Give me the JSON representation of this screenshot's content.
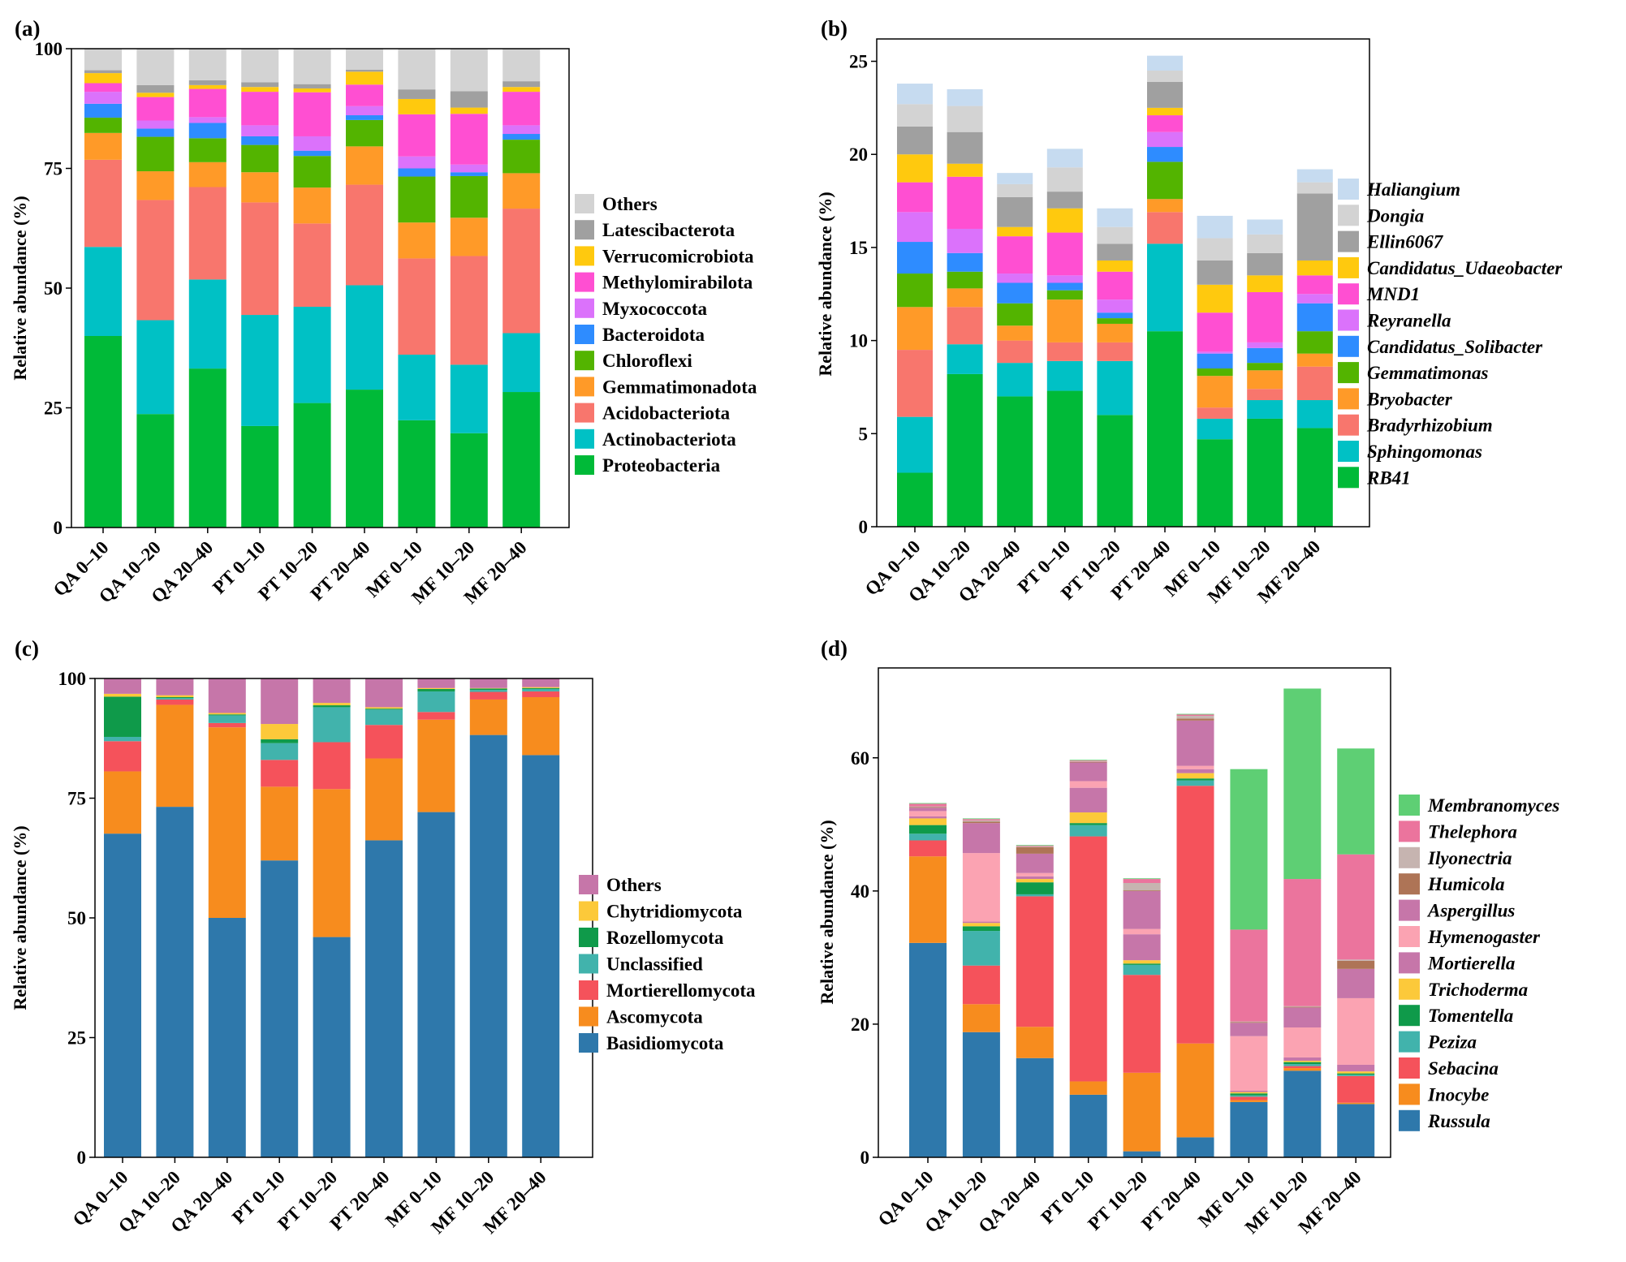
{
  "figure": {
    "categories": [
      "QA 0–10",
      "QA 10–20",
      "QA 20–40",
      "PT 0–10",
      "PT 10–20",
      "PT 20–40",
      "MF 0–10",
      "MF 10–20",
      "MF 20–40"
    ]
  },
  "chart_data": [
    {
      "id": "a",
      "panel_label": "(a)",
      "type": "bar",
      "stacked": true,
      "ylabel": "Relative abundance (%)",
      "ylim": [
        0,
        100
      ],
      "yticks": [
        0,
        25,
        50,
        75,
        100
      ],
      "legend_italic": false,
      "categories": [
        "QA 0–10",
        "QA 10–20",
        "QA 20–40",
        "PT 0–10",
        "PT 10–20",
        "PT 20–40",
        "MF 0–10",
        "MF 10–20",
        "MF 20–40"
      ],
      "series": [
        {
          "name": "Proteobacteria",
          "color": "#00BA38",
          "values": [
            40,
            23.7,
            33.2,
            21.2,
            26,
            28.8,
            22.4,
            19.7,
            28.3
          ]
        },
        {
          "name": "Actinobacteriota",
          "color": "#00C1C5",
          "values": [
            18.6,
            19.6,
            18.6,
            23.2,
            20.1,
            21.8,
            13.7,
            14.3,
            12.3
          ]
        },
        {
          "name": "Acidobacteriota",
          "color": "#F8766D",
          "values": [
            18.2,
            25.1,
            19.3,
            23.5,
            17.4,
            21,
            20.1,
            22.7,
            26
          ]
        },
        {
          "name": "Gemmatimonadota",
          "color": "#FF9A28",
          "values": [
            5.6,
            6,
            5.2,
            6.3,
            7.5,
            8,
            7.5,
            8,
            7.4
          ]
        },
        {
          "name": "Chloroflexi",
          "color": "#53B400",
          "values": [
            3.2,
            7.2,
            5,
            5.7,
            6.6,
            5.5,
            9.6,
            8.7,
            7
          ]
        },
        {
          "name": "Bacteroidota",
          "color": "#2E8CFF",
          "values": [
            2.9,
            1.7,
            3.2,
            1.8,
            1.1,
            1,
            1.7,
            0.8,
            1.2
          ]
        },
        {
          "name": "Myxococcota",
          "color": "#DB72FB",
          "values": [
            2.5,
            1.7,
            1.2,
            2.3,
            3,
            1.9,
            2.5,
            1.6,
            1.8
          ]
        },
        {
          "name": "Methylomirabilota",
          "color": "#FF4FD2",
          "values": [
            1.8,
            4.9,
            5.9,
            7,
            9.2,
            4.5,
            8.8,
            10.6,
            7
          ]
        },
        {
          "name": "Verrucomicrobiota",
          "color": "#FFC90E",
          "values": [
            2.1,
            0.9,
            0.8,
            1,
            0.8,
            2.7,
            3.2,
            1.3,
            1
          ]
        },
        {
          "name": "Latescibacterota",
          "color": "#A0A0A0",
          "values": [
            0.6,
            1.6,
            1,
            1,
            0.9,
            0.4,
            2,
            3.4,
            1.2
          ]
        },
        {
          "name": "Others",
          "color": "#D3D3D3",
          "values": [
            4.5,
            7.6,
            6.6,
            6.9,
            7.4,
            4.5,
            8.5,
            8.9,
            6.8
          ]
        }
      ]
    },
    {
      "id": "b",
      "panel_label": "(b)",
      "type": "bar",
      "stacked": true,
      "ylabel": "Relative abundance (%)",
      "ylim": [
        0,
        26.2
      ],
      "yticks": [
        0,
        5,
        10,
        15,
        20,
        25
      ],
      "legend_italic": true,
      "categories": [
        "QA 0–10",
        "QA 10–20",
        "QA 20–40",
        "PT 0–10",
        "PT 10–20",
        "PT 20–40",
        "MF 0–10",
        "MF 10–20",
        "MF 20–40"
      ],
      "series": [
        {
          "name": "RB41",
          "color": "#00BA38",
          "values": [
            2.9,
            8.2,
            7,
            7.3,
            6,
            10.5,
            4.7,
            5.8,
            5.3
          ]
        },
        {
          "name": "Sphingomonas",
          "color": "#00C1C5",
          "values": [
            3,
            1.6,
            1.8,
            1.6,
            2.9,
            4.7,
            1.1,
            1,
            1.5
          ]
        },
        {
          "name": "Bradyrhizobium",
          "color": "#F8766D",
          "values": [
            3.6,
            2,
            1.2,
            1,
            1,
            1.7,
            0.6,
            0.6,
            1.8
          ]
        },
        {
          "name": "Bryobacter",
          "color": "#FF9A28",
          "values": [
            2.3,
            1,
            0.8,
            2.3,
            1,
            0.7,
            1.7,
            1,
            0.7
          ]
        },
        {
          "name": "Gemmatimonas",
          "color": "#53B400",
          "values": [
            1.8,
            0.9,
            1.2,
            0.5,
            0.3,
            2,
            0.4,
            0.4,
            1.2
          ]
        },
        {
          "name": "Candidatus_Solibacter",
          "color": "#2E8CFF",
          "values": [
            1.7,
            1,
            1.1,
            0.4,
            0.3,
            0.8,
            0.8,
            0.8,
            1.5
          ]
        },
        {
          "name": "Reyranella",
          "color": "#DB72FB",
          "values": [
            1.6,
            1.3,
            0.5,
            0.4,
            0.7,
            0.8,
            0.1,
            0.3,
            0.5
          ]
        },
        {
          "name": "MND1",
          "color": "#FF4FD2",
          "values": [
            1.6,
            2.8,
            2,
            2.3,
            1.5,
            0.9,
            2.1,
            2.7,
            1
          ]
        },
        {
          "name": "Candidatus_Udaeobacter",
          "color": "#FFC90E",
          "values": [
            1.5,
            0.7,
            0.5,
            1.3,
            0.6,
            0.4,
            1.5,
            0.9,
            0.8
          ]
        },
        {
          "name": "Ellin6067",
          "color": "#A0A0A0",
          "values": [
            1.5,
            1.7,
            1.6,
            0.9,
            0.9,
            1.4,
            1.3,
            1.2,
            3.6
          ]
        },
        {
          "name": "Dongia",
          "color": "#D3D3D3",
          "values": [
            1.2,
            1.4,
            0.7,
            1.3,
            0.9,
            0.6,
            1.2,
            1,
            0.6
          ]
        },
        {
          "name": "Haliangium",
          "color": "#C6DBF0",
          "values": [
            1.1,
            0.9,
            0.6,
            1,
            1,
            0.8,
            1.2,
            0.8,
            0.7
          ]
        }
      ]
    },
    {
      "id": "c",
      "panel_label": "(c)",
      "type": "bar",
      "stacked": true,
      "ylabel": "Relative abundance (%)",
      "ylim": [
        0,
        100
      ],
      "yticks": [
        0,
        25,
        50,
        75,
        100
      ],
      "legend_italic": false,
      "categories": [
        "QA 0–10",
        "QA 10–20",
        "QA 20–40",
        "PT 0–10",
        "PT 10–20",
        "PT 20–40",
        "MF 0–10",
        "MF 10–20",
        "MF 20–40"
      ],
      "series": [
        {
          "name": "Basidiomycota",
          "color": "#2E78AB",
          "values": [
            67.6,
            73.2,
            50,
            62,
            46,
            66.2,
            72.1,
            88.2,
            84
          ]
        },
        {
          "name": "Ascomycota",
          "color": "#F78C1E",
          "values": [
            13,
            21.3,
            39.8,
            15.4,
            30.9,
            17.1,
            19.3,
            7.4,
            12.1
          ]
        },
        {
          "name": "Mortierellomycota",
          "color": "#F5525B",
          "values": [
            6.3,
            1.1,
            0.9,
            5.6,
            9.8,
            7,
            1.6,
            1.6,
            1.2
          ]
        },
        {
          "name": "Unclassified",
          "color": "#41B3AC",
          "values": [
            0.9,
            0.3,
            1.6,
            3.5,
            7.3,
            3.2,
            4.3,
            0.4,
            0.5
          ]
        },
        {
          "name": "Rozellomycota",
          "color": "#0F9A4A",
          "values": [
            8.4,
            0.2,
            0.2,
            0.8,
            0.4,
            0.2,
            0.5,
            0.3,
            0.2
          ]
        },
        {
          "name": "Chytridiomycota",
          "color": "#FCC93A",
          "values": [
            0.6,
            0.4,
            0.3,
            3.2,
            0.5,
            0.3,
            0.2,
            0.1,
            0.2
          ]
        },
        {
          "name": "Others",
          "color": "#C676A9",
          "values": [
            3.2,
            3.5,
            7.2,
            9.5,
            5.1,
            6,
            2,
            2,
            1.8
          ]
        }
      ]
    },
    {
      "id": "d",
      "panel_label": "(d)",
      "type": "bar",
      "stacked": true,
      "ylabel": "Relative abundance (%)",
      "ylim": [
        0,
        73.5
      ],
      "yticks": [
        0,
        20,
        40,
        60
      ],
      "legend_italic": true,
      "categories": [
        "QA 0–10",
        "QA 10–20",
        "QA 20–40",
        "PT 0–10",
        "PT 10–20",
        "PT 20–40",
        "MF 0–10",
        "MF 10–20",
        "MF 20–40"
      ],
      "series": [
        {
          "name": "Russula",
          "color": "#2E78AB",
          "values": [
            32.2,
            18.8,
            14.9,
            9.4,
            0.9,
            3,
            8.3,
            13,
            8
          ]
        },
        {
          "name": "Inocybe",
          "color": "#F78C1E",
          "values": [
            13,
            4.2,
            4.7,
            2,
            11.8,
            14.1,
            0.3,
            0.4,
            0.2
          ]
        },
        {
          "name": "Sebacina",
          "color": "#F5525B",
          "values": [
            2.4,
            5.8,
            19.6,
            36.8,
            14.7,
            38.7,
            0.5,
            0.3,
            4
          ]
        },
        {
          "name": "Peziza",
          "color": "#41B3AC",
          "values": [
            1,
            5.2,
            0.3,
            1.7,
            1.5,
            0.8,
            0.2,
            0.3,
            0.2
          ]
        },
        {
          "name": "Tomentella",
          "color": "#0F9A4A",
          "values": [
            1.3,
            0.7,
            1.8,
            0.3,
            0.2,
            0.3,
            0.3,
            0.3,
            0.2
          ]
        },
        {
          "name": "Trichoderma",
          "color": "#FCC93A",
          "values": [
            1,
            0.5,
            0.5,
            1.6,
            0.5,
            0.8,
            0.2,
            0.2,
            0.3
          ]
        },
        {
          "name": "Mortierella",
          "color": "#C676A9",
          "values": [
            0.3,
            0.2,
            0.4,
            3.7,
            3.9,
            0.6,
            0.2,
            0.5,
            1
          ]
        },
        {
          "name": "Hymenogaster",
          "color": "#FBA3B2",
          "values": [
            0.8,
            10.3,
            0.5,
            1,
            0.8,
            0.5,
            8.2,
            4.5,
            10
          ]
        },
        {
          "name": "Aspergillus",
          "color": "#C676A9",
          "values": [
            0.5,
            4.5,
            2.9,
            2.8,
            5.7,
            6.8,
            2,
            3,
            4.4
          ]
        },
        {
          "name": "Humicola",
          "color": "#AE7456",
          "values": [
            0.1,
            0.2,
            1,
            0.1,
            0.1,
            0.3,
            0.1,
            0.1,
            1.2
          ]
        },
        {
          "name": "Ilyonectria",
          "color": "#C6B4B0",
          "values": [
            0.1,
            0.2,
            0.1,
            0.1,
            1.1,
            0.4,
            0.1,
            0.1,
            0.2
          ]
        },
        {
          "name": "Thelephora",
          "color": "#EB749D",
          "values": [
            0.4,
            0.2,
            0.1,
            0.1,
            0.6,
            0.2,
            13.8,
            19.1,
            15.8
          ]
        },
        {
          "name": "Membranomyces",
          "color": "#5ECF74",
          "values": [
            0.1,
            0.1,
            0.1,
            0.1,
            0.1,
            0.1,
            24.1,
            28.6,
            15.9
          ]
        }
      ]
    }
  ]
}
